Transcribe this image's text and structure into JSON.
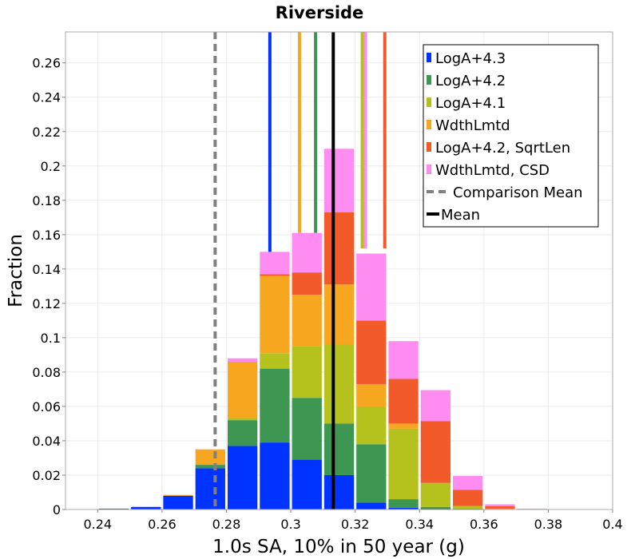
{
  "chart_data": {
    "type": "bar",
    "title": "Riverside",
    "xlabel": "1.0s SA, 10% in 50 year (g)",
    "ylabel": "Fraction",
    "xlim": [
      0.23,
      0.4
    ],
    "ylim": [
      0,
      0.278
    ],
    "xticks": [
      "0.24",
      "0.26",
      "0.28",
      "0.3",
      "0.32",
      "0.34",
      "0.36",
      "0.38",
      "0.4"
    ],
    "xtick_values": [
      0.24,
      0.26,
      0.28,
      0.3,
      0.32,
      0.34,
      0.36,
      0.38,
      0.4
    ],
    "yticks": [
      "0",
      "0.02",
      "0.04",
      "0.06",
      "0.08",
      "0.1",
      "0.12",
      "0.14",
      "0.16",
      "0.18",
      "0.2",
      "0.22",
      "0.24",
      "0.26"
    ],
    "ytick_values": [
      0,
      0.02,
      0.04,
      0.06,
      0.08,
      0.1,
      0.12,
      0.14,
      0.16,
      0.18,
      0.2,
      0.22,
      0.24,
      0.26
    ],
    "grid": true,
    "stacked": true,
    "bin_width": 0.01,
    "bin_centers": [
      0.245,
      0.255,
      0.265,
      0.275,
      0.285,
      0.295,
      0.305,
      0.315,
      0.325,
      0.335,
      0.345,
      0.355,
      0.365,
      0.375,
      0.385
    ],
    "series": [
      {
        "name": "LogA+4.3",
        "color": "#0033ff",
        "values": [
          0.0005,
          0.0015,
          0.008,
          0.024,
          0.037,
          0.039,
          0.029,
          0.02,
          0.004,
          0.001,
          0.0005,
          0,
          0,
          0,
          0
        ]
      },
      {
        "name": "LogA+4.2",
        "color": "#3d9651",
        "values": [
          0,
          0,
          0,
          0.002,
          0.015,
          0.043,
          0.036,
          0.03,
          0.034,
          0.005,
          0.001,
          0.0005,
          0,
          0,
          0
        ]
      },
      {
        "name": "LogA+4.1",
        "color": "#b5c11d",
        "values": [
          0,
          0,
          0,
          0,
          0.001,
          0.009,
          0.03,
          0.046,
          0.022,
          0.041,
          0.014,
          0.0015,
          0.0005,
          0,
          0
        ]
      },
      {
        "name": "WdthLmtd",
        "color": "#f7a620",
        "values": [
          0,
          0,
          0.0005,
          0.009,
          0.033,
          0.045,
          0.03,
          0.035,
          0.013,
          0.003,
          0,
          0,
          0,
          0,
          0
        ]
      },
      {
        "name": "LogA+4.2, SqrtLen",
        "color": "#f25a2a",
        "values": [
          0,
          0,
          0,
          0,
          0,
          0.001,
          0.013,
          0.042,
          0.037,
          0.026,
          0.036,
          0.0095,
          0.0015,
          0,
          0
        ]
      },
      {
        "name": "WdthLmtd, CSD",
        "color": "#ff8cf0",
        "values": [
          0,
          0,
          0,
          0,
          0.002,
          0.013,
          0.023,
          0.037,
          0.039,
          0.022,
          0.018,
          0.008,
          0.001,
          0.0005,
          0.0002
        ]
      }
    ],
    "reference_lines": [
      {
        "name": "LogA+4.3 mean",
        "x": 0.2935,
        "color": "#0033ff",
        "ymin": 0.15
      },
      {
        "name": "LogA+4.2 mean",
        "x": 0.3077,
        "color": "#3d9651",
        "ymin": 0.161
      },
      {
        "name": "LogA+4.1 mean",
        "x": 0.3222,
        "color": "#b5c11d",
        "ymin": 0.152
      },
      {
        "name": "WdthLmtd mean",
        "x": 0.3027,
        "color": "#f7a620",
        "ymin": 0.161
      },
      {
        "name": "LogA+4.2, SqrtLen mean",
        "x": 0.3292,
        "color": "#f25a2a",
        "ymin": 0.152
      },
      {
        "name": "WdthLmtd, CSD mean",
        "x": 0.3232,
        "color": "#ff8cf0",
        "ymin": 0.152
      }
    ],
    "comparison_mean": {
      "label": "Comparison Mean",
      "x": 0.2765,
      "color": "#808080"
    },
    "mean": {
      "label": "Mean",
      "x": 0.3132,
      "color": "#000000"
    },
    "legend_position": "top-right"
  }
}
